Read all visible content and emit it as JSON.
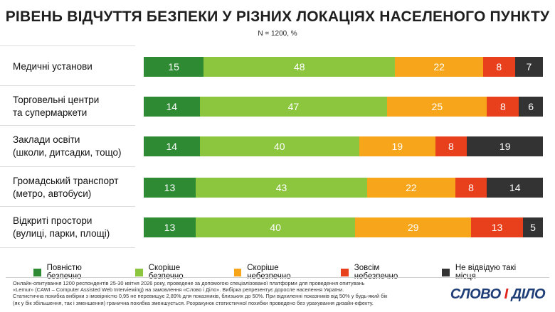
{
  "title": "РІВЕНЬ ВІДЧУТТЯ БЕЗПЕКИ У РІЗНИХ ЛОКАЦІЯХ НАСЕЛЕНОГО ПУНКТУ",
  "subtitle": "N = 1200, %",
  "rows": [
    {
      "label_lines": [
        "Медичні установи"
      ]
    },
    {
      "label_lines": [
        "Торговельні центри",
        "та супермаркети"
      ]
    },
    {
      "label_lines": [
        "Заклади освіти",
        "(школи, дитсадки, тощо)"
      ]
    },
    {
      "label_lines": [
        "Громадський транспорт",
        "(метро, автобуси)"
      ]
    },
    {
      "label_lines": [
        "Відкриті простори",
        "(вулиці, парки, площі)"
      ]
    }
  ],
  "legend": [
    {
      "label": "Повністю безпечно",
      "color": "#2e8b34"
    },
    {
      "label": "Скоріше безпечно",
      "color": "#8cc63f"
    },
    {
      "label": "Скоріше небезпечно",
      "color": "#f7a51b"
    },
    {
      "label": "Зовсім небезпечно",
      "color": "#e8401c"
    },
    {
      "label": "Не відвідую такі місця",
      "color": "#333333"
    }
  ],
  "chart_data": {
    "type": "bar",
    "orientation": "horizontal",
    "stacked": true,
    "title": "РІВЕНЬ ВІДЧУТТЯ БЕЗПЕКИ У РІЗНИХ ЛОКАЦІЯХ НАСЕЛЕНОГО ПУНКТУ",
    "subtitle": "N = 1200, %",
    "categories": [
      "Медичні установи",
      "Торговельні центри та супермаркети",
      "Заклади освіти (школи, дитсадки, тощо)",
      "Громадський транспорт (метро, автобуси)",
      "Відкриті простори (вулиці, парки, площі)"
    ],
    "series": [
      {
        "name": "Повністю безпечно",
        "color": "#2e8b34",
        "values": [
          15,
          14,
          14,
          13,
          13
        ]
      },
      {
        "name": "Скоріше безпечно",
        "color": "#8cc63f",
        "values": [
          48,
          47,
          40,
          43,
          40
        ]
      },
      {
        "name": "Скоріше небезпечно",
        "color": "#f7a51b",
        "values": [
          22,
          25,
          19,
          22,
          29
        ]
      },
      {
        "name": "Зовсім небезпечно",
        "color": "#e8401c",
        "values": [
          8,
          8,
          8,
          8,
          13
        ]
      },
      {
        "name": "Не відвідую такі місця",
        "color": "#333333",
        "values": [
          7,
          6,
          19,
          14,
          5
        ]
      }
    ],
    "legend_position": "bottom",
    "data_labels": true
  },
  "footnote_lines": [
    "Онлайн-опитування 1200 респондентів 25-30 квітня 2026 року, проведене за допомогою спеціалізованої платформи для проведення опитувань",
    "«Lemur» (CAWI – Computer Assisted Web Interviewing) на замовлення «Слово і Діло». Вибірка репрезентує доросле населення України.",
    "Статистична похибка вибірки з імовірністю 0,95 не перевищує 2,89% для показників, близьких до 50%. При відхиленні показників від 50% у будь-який бік",
    "(як у бік збільшення, так і зменшення) гранична похибка зменшується. Розрахунок статистичної похибки проведено без урахування дизайн-ефекту."
  ],
  "logo": {
    "word1": "СЛОВО",
    "word2": "І",
    "word3": "ДІЛО",
    "colors": {
      "primary": "#1f3e78",
      "accent": "#e0231b"
    }
  }
}
